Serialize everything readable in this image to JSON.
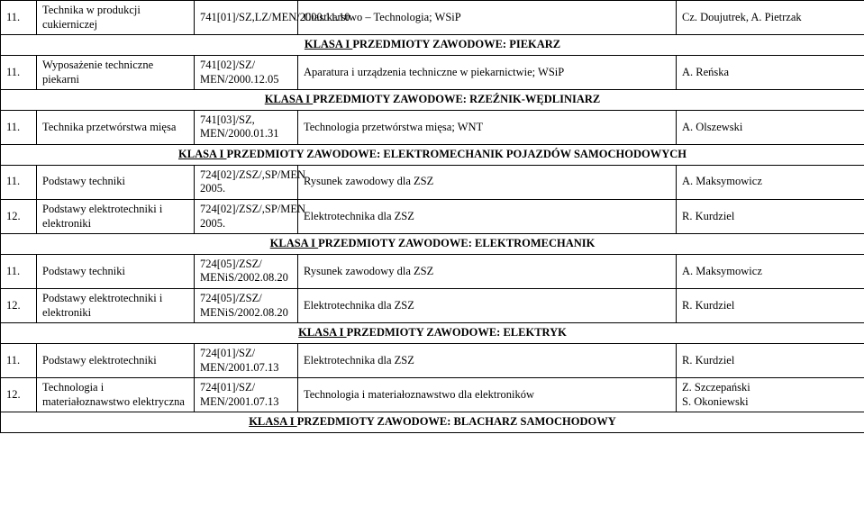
{
  "rows": [
    {
      "num": "11.",
      "subject": "Technika w produkcji cukierniczej",
      "code": "741[01]/SZ,LZ/MEN/2000.11.10",
      "desc": "Ciastkarstwo – Technologia; WSiP",
      "auth": "Cz. Doujutrek, A. Pietrzak"
    }
  ],
  "hdr1": {
    "pre": "KLASA I ",
    "rest": "PRZEDMIOTY ZAWODOWE: PIEKARZ"
  },
  "rows2": [
    {
      "num": "11.",
      "subject": "Wyposażenie techniczne piekarni",
      "code": "741[02]/SZ/ MEN/2000.12.05",
      "desc": "Aparatura i urządzenia techniczne w piekarnictwie; WSiP",
      "auth": "A. Reńska"
    }
  ],
  "hdr2": {
    "pre": "KLASA I ",
    "rest": "PRZEDMIOTY ZAWODOWE: RZEŹNIK-WĘDLINIARZ"
  },
  "rows3": [
    {
      "num": "11.",
      "subject": "Technika przetwórstwa mięsa",
      "code": "741[03]/SZ, MEN/2000.01.31",
      "desc": "Technologia przetwórstwa mięsa; WNT",
      "auth": "A. Olszewski"
    }
  ],
  "hdr3": {
    "pre": "KLASA I ",
    "rest": "PRZEDMIOTY ZAWODOWE: ELEKTROMECHANIK POJAZDÓW SAMOCHODOWYCH"
  },
  "rows4": [
    {
      "num": "11.",
      "subject": "Podstawy techniki",
      "code": "724[02]/ZSZ/,SP/MEN 2005.",
      "desc": "Rysunek zawodowy dla ZSZ",
      "auth": "A. Maksymowicz"
    },
    {
      "num": "12.",
      "subject": "Podstawy elektrotechniki i elektroniki",
      "code": "724[02]/ZSZ/,SP/MEN 2005.",
      "desc": "Elektrotechnika dla ZSZ",
      "auth": "R. Kurdziel"
    }
  ],
  "hdr4": {
    "pre": "KLASA I ",
    "rest": "PRZEDMIOTY ZAWODOWE: ELEKTROMECHANIK"
  },
  "rows5": [
    {
      "num": "11.",
      "subject": "Podstawy techniki",
      "code": "724[05]/ZSZ/ MENiS/2002.08.20",
      "desc": "Rysunek zawodowy dla ZSZ",
      "auth": "A. Maksymowicz"
    },
    {
      "num": "12.",
      "subject": "Podstawy elektrotechniki i elektroniki",
      "code": "724[05]/ZSZ/ MENiS/2002.08.20",
      "desc": "Elektrotechnika dla ZSZ",
      "auth": "R. Kurdziel"
    }
  ],
  "hdr5": {
    "pre": "KLASA I ",
    "rest": "PRZEDMIOTY ZAWODOWE: ELEKTRYK"
  },
  "rows6": [
    {
      "num": "11.",
      "subject": "Podstawy elektrotechniki",
      "code": "724[01]/SZ/ MEN/2001.07.13",
      "desc": "Elektrotechnika dla ZSZ",
      "auth": "R. Kurdziel"
    },
    {
      "num": "12.",
      "subject": "Technologia i materiałoznawstwo elektryczna",
      "code": "724[01]/SZ/ MEN/2001.07.13",
      "desc": "Technologia i materiałoznawstwo dla elektroników",
      "auth": "Z. Szczepański\nS. Okoniewski"
    }
  ],
  "hdr6": {
    "pre": "KLASA I ",
    "rest": "PRZEDMIOTY ZAWODOWE: BLACHARZ SAMOCHODOWY"
  }
}
